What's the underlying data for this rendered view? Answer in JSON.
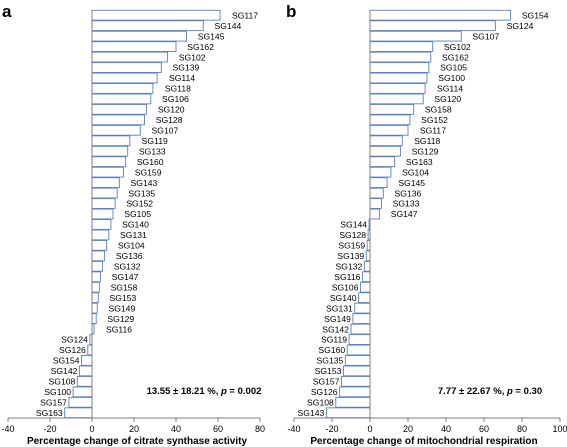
{
  "chart_data": [
    {
      "type": "bar",
      "orientation": "horizontal",
      "panel_label": "a",
      "xlabel": "Percentage change of citrate synthase activity",
      "xlim": [
        -40,
        80
      ],
      "x_ticks": [
        "-40",
        "-20",
        "0",
        "20",
        "40",
        "60",
        "80"
      ],
      "x_tick_values": [
        -40,
        -20,
        0,
        20,
        40,
        60,
        80
      ],
      "annotation_prefix": "13.55 ± 18.21 %, ",
      "annotation_p": "p",
      "annotation_suffix": " = 0.002",
      "bar_color": "#5b7fb9",
      "categories": [
        "SG117",
        "SG144",
        "SG145",
        "SG162",
        "SG102",
        "SG139",
        "SG114",
        "SG118",
        "SG106",
        "SG120",
        "SG128",
        "SG107",
        "SG119",
        "SG133",
        "SG160",
        "SG159",
        "SG143",
        "SG135",
        "SG152",
        "SG105",
        "SG140",
        "SG131",
        "SG104",
        "SG136",
        "SG132",
        "SG147",
        "SG158",
        "SG153",
        "SG149",
        "SG129",
        "SG116",
        "SG124",
        "SG126",
        "SG154",
        "SG142",
        "SG108",
        "SG100",
        "SG157",
        "SG163"
      ],
      "values": [
        61,
        53,
        45,
        40,
        36,
        33,
        31,
        29,
        28,
        26,
        25,
        23,
        18,
        17,
        16,
        15,
        13,
        12,
        11,
        10,
        9,
        8,
        7,
        6,
        5,
        4,
        3.5,
        3,
        2.5,
        2,
        1,
        -1,
        -2,
        -5,
        -6,
        -7,
        -9,
        -11,
        -13
      ]
    },
    {
      "type": "bar",
      "orientation": "horizontal",
      "panel_label": "b",
      "xlabel": "Percentage change of mitochondrial respiration",
      "xlim": [
        -40,
        100
      ],
      "x_ticks": [
        "-40",
        "-20",
        "0",
        "20",
        "40",
        "60",
        "80",
        "100"
      ],
      "x_tick_values": [
        -40,
        -20,
        0,
        20,
        40,
        60,
        80,
        100
      ],
      "annotation_prefix": "7.77 ± 22.67 %, ",
      "annotation_p": "p",
      "annotation_suffix": " = 0.30",
      "bar_color": "#5b7fb9",
      "categories": [
        "SG154",
        "SG124",
        "SG107",
        "SG102",
        "SG162",
        "SG105",
        "SG100",
        "SG114",
        "SG120",
        "SG158",
        "SG152",
        "SG117",
        "SG118",
        "SG129",
        "SG163",
        "SG104",
        "SG145",
        "SG136",
        "SG133",
        "SG147",
        "SG144",
        "SG128",
        "SG159",
        "SG139",
        "SG132",
        "SG116",
        "SG106",
        "SG140",
        "SG131",
        "SG149",
        "SG142",
        "SG119",
        "SG160",
        "SG135",
        "SG153",
        "SG157",
        "SG126",
        "SG108",
        "SG143"
      ],
      "values": [
        74,
        66,
        48,
        33,
        32,
        31,
        30,
        29,
        28,
        23,
        21,
        20,
        17,
        16,
        13,
        11,
        9,
        7,
        6,
        5,
        -0.5,
        -1,
        -1.5,
        -2,
        -3,
        -4,
        -5,
        -6,
        -8,
        -9,
        -10,
        -11,
        -12,
        -13,
        -14,
        -15,
        -16,
        -18,
        -23
      ]
    }
  ]
}
